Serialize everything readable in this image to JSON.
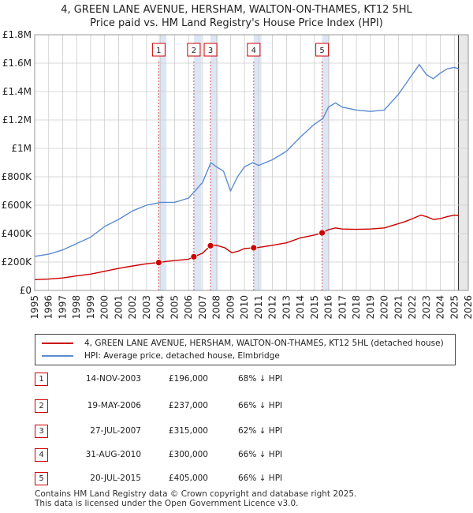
{
  "chart_data": {
    "type": "line",
    "title_line1": "4, GREEN LANE AVENUE, HERSHAM, WALTON-ON-THAMES, KT12 5HL",
    "title_line2": "Price paid vs. HM Land Registry's House Price Index (HPI)",
    "xlim": [
      1995,
      2026
    ],
    "ylim": [
      0,
      1800000
    ],
    "y_ticks": [
      {
        "value": 0,
        "label": "£0"
      },
      {
        "value": 200000,
        "label": "£200K"
      },
      {
        "value": 400000,
        "label": "£400K"
      },
      {
        "value": 600000,
        "label": "£600K"
      },
      {
        "value": 800000,
        "label": "£800K"
      },
      {
        "value": 1000000,
        "label": "£1M"
      },
      {
        "value": 1200000,
        "label": "£1.2M"
      },
      {
        "value": 1400000,
        "label": "£1.4M"
      },
      {
        "value": 1600000,
        "label": "£1.6M"
      },
      {
        "value": 1800000,
        "label": "£1.8M"
      }
    ],
    "x_ticks": [
      "1995",
      "1996",
      "1997",
      "1998",
      "1999",
      "2000",
      "2001",
      "2002",
      "2003",
      "2004",
      "2005",
      "2006",
      "2007",
      "2008",
      "2009",
      "2010",
      "2011",
      "2012",
      "2013",
      "2014",
      "2015",
      "2016",
      "2017",
      "2018",
      "2019",
      "2020",
      "2021",
      "2022",
      "2023",
      "2024",
      "2025",
      "2026"
    ],
    "shade_start": 2025.3,
    "series": [
      {
        "name": "4, GREEN LANE AVENUE, HERSHAM, WALTON-ON-THAMES, KT12 5HL (detached house)",
        "color": "#cc0000",
        "points": [
          [
            1995,
            76000
          ],
          [
            1996,
            80000
          ],
          [
            1997,
            88000
          ],
          [
            1998,
            102000
          ],
          [
            1999,
            115000
          ],
          [
            2000,
            135000
          ],
          [
            2001,
            155000
          ],
          [
            2002,
            172000
          ],
          [
            2003,
            188000
          ],
          [
            2003.87,
            196000
          ],
          [
            2004.5,
            205000
          ],
          [
            2005,
            210000
          ],
          [
            2006,
            220000
          ],
          [
            2006.38,
            237000
          ],
          [
            2007,
            262000
          ],
          [
            2007.57,
            315000
          ],
          [
            2008,
            318000
          ],
          [
            2008.6,
            300000
          ],
          [
            2009.1,
            265000
          ],
          [
            2009.6,
            278000
          ],
          [
            2010,
            295000
          ],
          [
            2010.66,
            300000
          ],
          [
            2011,
            302000
          ],
          [
            2012,
            318000
          ],
          [
            2013,
            335000
          ],
          [
            2014,
            370000
          ],
          [
            2015,
            390000
          ],
          [
            2015.55,
            405000
          ],
          [
            2016,
            428000
          ],
          [
            2016.5,
            440000
          ],
          [
            2017,
            432000
          ],
          [
            2018,
            430000
          ],
          [
            2019,
            432000
          ],
          [
            2020,
            440000
          ],
          [
            2021,
            470000
          ],
          [
            2021.5,
            485000
          ],
          [
            2022,
            505000
          ],
          [
            2022.6,
            530000
          ],
          [
            2023,
            520000
          ],
          [
            2023.5,
            500000
          ],
          [
            2024,
            505000
          ],
          [
            2024.5,
            520000
          ],
          [
            2025,
            530000
          ],
          [
            2025.3,
            528000
          ]
        ]
      },
      {
        "name": "HPI: Average price, detached house, Elmbridge",
        "color": "#5b8bd0",
        "points": [
          [
            1995,
            240000
          ],
          [
            1996,
            255000
          ],
          [
            1997,
            285000
          ],
          [
            1998,
            330000
          ],
          [
            1999,
            375000
          ],
          [
            2000,
            450000
          ],
          [
            2001,
            500000
          ],
          [
            2002,
            560000
          ],
          [
            2003,
            600000
          ],
          [
            2004,
            620000
          ],
          [
            2005,
            620000
          ],
          [
            2006,
            650000
          ],
          [
            2007,
            760000
          ],
          [
            2007.6,
            900000
          ],
          [
            2008,
            870000
          ],
          [
            2008.5,
            840000
          ],
          [
            2009,
            700000
          ],
          [
            2009.5,
            800000
          ],
          [
            2010,
            870000
          ],
          [
            2010.6,
            900000
          ],
          [
            2011,
            880000
          ],
          [
            2012,
            920000
          ],
          [
            2013,
            980000
          ],
          [
            2014,
            1080000
          ],
          [
            2015,
            1170000
          ],
          [
            2015.6,
            1210000
          ],
          [
            2016,
            1290000
          ],
          [
            2016.5,
            1320000
          ],
          [
            2017,
            1290000
          ],
          [
            2018,
            1270000
          ],
          [
            2019,
            1260000
          ],
          [
            2020,
            1270000
          ],
          [
            2021,
            1380000
          ],
          [
            2021.5,
            1450000
          ],
          [
            2022,
            1520000
          ],
          [
            2022.5,
            1590000
          ],
          [
            2023,
            1520000
          ],
          [
            2023.5,
            1490000
          ],
          [
            2024,
            1530000
          ],
          [
            2024.5,
            1560000
          ],
          [
            2025,
            1570000
          ],
          [
            2025.3,
            1560000
          ]
        ]
      }
    ],
    "sales": [
      {
        "num": "1",
        "x": 2003.87,
        "price": 196000,
        "date": "14-NOV-2003",
        "price_label": "£196,000",
        "hpi": "68% ↓ HPI"
      },
      {
        "num": "2",
        "x": 2006.38,
        "price": 237000,
        "date": "19-MAY-2006",
        "price_label": "£237,000",
        "hpi": "66% ↓ HPI"
      },
      {
        "num": "3",
        "x": 2007.57,
        "price": 315000,
        "date": "27-JUL-2007",
        "price_label": "£315,000",
        "hpi": "62% ↓ HPI"
      },
      {
        "num": "4",
        "x": 2010.66,
        "price": 300000,
        "date": "31-AUG-2010",
        "price_label": "£300,000",
        "hpi": "66% ↓ HPI"
      },
      {
        "num": "5",
        "x": 2015.55,
        "price": 405000,
        "date": "20-JUL-2015",
        "price_label": "£405,000",
        "hpi": "66% ↓ HPI"
      }
    ]
  },
  "legend": {
    "property_label": "4, GREEN LANE AVENUE, HERSHAM, WALTON-ON-THAMES, KT12 5HL (detached house)",
    "hpi_label": "HPI: Average price, detached house, Elmbridge",
    "property_color": "#cc0000",
    "hpi_color": "#5b8bd0"
  },
  "footer": {
    "line1": "Contains HM Land Registry data © Crown copyright and database right 2025.",
    "line2": "This data is licensed under the Open Government Licence v3.0."
  }
}
